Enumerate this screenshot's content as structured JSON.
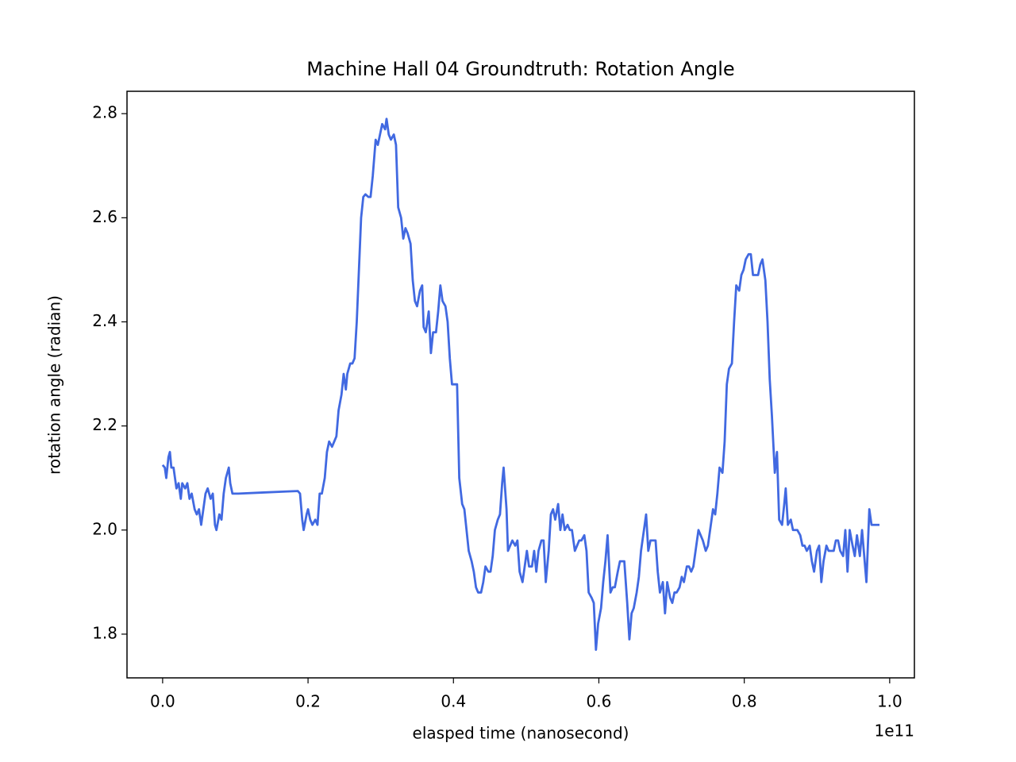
{
  "chart_data": {
    "type": "line",
    "title": "Machine Hall 04 Groundtruth: Rotation Angle",
    "x_label": "elasped time (nanosecond)",
    "y_label": "rotation angle (radian)",
    "x_offset_label": "1e11",
    "xlim": [
      -0.049,
      1.034
    ],
    "ylim": [
      1.716,
      2.843
    ],
    "xticks": [
      {
        "value": 0,
        "label": "0.0"
      },
      0.2,
      0.4,
      0.6,
      0.8,
      {
        "value": 1,
        "label": "1.0"
      }
    ],
    "yticks": [
      1.8,
      {
        "value": 2,
        "label": "2.0"
      },
      2.2,
      2.4,
      2.6,
      2.8
    ],
    "x": [
      0,
      0.003,
      0.005,
      0.008,
      0.01,
      0.012,
      0.015,
      0.019,
      0.022,
      0.025,
      0.027,
      0.031,
      0.034,
      0.037,
      0.04,
      0.044,
      0.047,
      0.05,
      0.053,
      0.056,
      0.059,
      0.062,
      0.066,
      0.069,
      0.072,
      0.074,
      0.078,
      0.081,
      0.084,
      0.087,
      0.091,
      0.093,
      0.096,
      0.104,
      0.136,
      0.169,
      0.186,
      0.189,
      0.192,
      0.194,
      0.198,
      0.2,
      0.203,
      0.206,
      0.21,
      0.213,
      0.216,
      0.219,
      0.223,
      0.226,
      0.229,
      0.233,
      0.236,
      0.239,
      0.242,
      0.246,
      0.249,
      0.252,
      0.254,
      0.258,
      0.261,
      0.264,
      0.267,
      0.27,
      0.273,
      0.276,
      0.279,
      0.283,
      0.286,
      0.289,
      0.293,
      0.296,
      0.299,
      0.302,
      0.306,
      0.308,
      0.311,
      0.314,
      0.318,
      0.321,
      0.324,
      0.328,
      0.331,
      0.334,
      0.337,
      0.341,
      0.344,
      0.347,
      0.35,
      0.354,
      0.357,
      0.359,
      0.362,
      0.366,
      0.369,
      0.372,
      0.376,
      0.379,
      0.382,
      0.385,
      0.389,
      0.392,
      0.395,
      0.398,
      0.402,
      0.405,
      0.408,
      0.412,
      0.415,
      0.418,
      0.421,
      0.425,
      0.428,
      0.431,
      0.434,
      0.438,
      0.441,
      0.444,
      0.448,
      0.451,
      0.454,
      0.457,
      0.461,
      0.464,
      0.467,
      0.469,
      0.473,
      0.475,
      0.478,
      0.481,
      0.485,
      0.488,
      0.491,
      0.495,
      0.498,
      0.501,
      0.504,
      0.508,
      0.511,
      0.514,
      0.517,
      0.521,
      0.524,
      0.527,
      0.531,
      0.534,
      0.537,
      0.54,
      0.544,
      0.547,
      0.55,
      0.553,
      0.557,
      0.56,
      0.563,
      0.567,
      0.57,
      0.573,
      0.576,
      0.58,
      0.583,
      0.586,
      0.59,
      0.593,
      0.596,
      0.599,
      0.603,
      0.606,
      0.609,
      0.612,
      0.616,
      0.619,
      0.622,
      0.626,
      0.629,
      0.632,
      0.635,
      0.639,
      0.642,
      0.645,
      0.648,
      0.652,
      0.655,
      0.658,
      0.662,
      0.665,
      0.668,
      0.671,
      0.675,
      0.678,
      0.681,
      0.684,
      0.688,
      0.691,
      0.694,
      0.698,
      0.701,
      0.704,
      0.707,
      0.711,
      0.714,
      0.717,
      0.721,
      0.724,
      0.727,
      0.73,
      0.734,
      0.737,
      0.74,
      0.743,
      0.747,
      0.75,
      0.753,
      0.757,
      0.76,
      0.763,
      0.766,
      0.77,
      0.773,
      0.776,
      0.779,
      0.783,
      0.786,
      0.789,
      0.793,
      0.796,
      0.799,
      0.802,
      0.806,
      0.809,
      0.812,
      0.816,
      0.819,
      0.822,
      0.825,
      0.829,
      0.832,
      0.835,
      0.838,
      0.842,
      0.845,
      0.848,
      0.852,
      0.855,
      0.857,
      0.86,
      0.864,
      0.867,
      0.87,
      0.873,
      0.877,
      0.88,
      0.883,
      0.886,
      0.89,
      0.893,
      0.896,
      0.9,
      0.903,
      0.906,
      0.909,
      0.913,
      0.916,
      0.919,
      0.923,
      0.926,
      0.929,
      0.932,
      0.936,
      0.939,
      0.942,
      0.945,
      0.949,
      0.952,
      0.955,
      0.959,
      0.962,
      0.965,
      0.968,
      0.972,
      0.975,
      0.978,
      0.986
    ],
    "series": [
      {
        "name": "rotation angle",
        "color": "#4169e1",
        "values": [
          2.125,
          2.12,
          2.1,
          2.14,
          2.15,
          2.12,
          2.12,
          2.08,
          2.09,
          2.06,
          2.09,
          2.08,
          2.09,
          2.06,
          2.07,
          2.04,
          2.03,
          2.04,
          2.01,
          2.04,
          2.07,
          2.08,
          2.06,
          2.07,
          2.01,
          2.0,
          2.03,
          2.02,
          2.07,
          2.1,
          2.12,
          2.09,
          2.07,
          2.07,
          2.072,
          2.074,
          2.075,
          2.07,
          2.02,
          2.0,
          2.03,
          2.04,
          2.02,
          2.01,
          2.02,
          2.01,
          2.07,
          2.07,
          2.1,
          2.15,
          2.17,
          2.16,
          2.17,
          2.18,
          2.23,
          2.26,
          2.3,
          2.27,
          2.3,
          2.32,
          2.32,
          2.33,
          2.4,
          2.5,
          2.6,
          2.64,
          2.645,
          2.64,
          2.64,
          2.68,
          2.75,
          2.74,
          2.76,
          2.78,
          2.77,
          2.79,
          2.76,
          2.75,
          2.76,
          2.74,
          2.62,
          2.6,
          2.56,
          2.58,
          2.57,
          2.55,
          2.48,
          2.44,
          2.43,
          2.46,
          2.47,
          2.39,
          2.38,
          2.42,
          2.34,
          2.38,
          2.38,
          2.42,
          2.47,
          2.44,
          2.43,
          2.4,
          2.33,
          2.28,
          2.28,
          2.28,
          2.1,
          2.05,
          2.04,
          2.0,
          1.96,
          1.94,
          1.92,
          1.89,
          1.88,
          1.88,
          1.9,
          1.93,
          1.92,
          1.92,
          1.95,
          2.0,
          2.02,
          2.03,
          2.09,
          2.12,
          2.04,
          1.96,
          1.97,
          1.98,
          1.97,
          1.98,
          1.92,
          1.9,
          1.93,
          1.96,
          1.93,
          1.93,
          1.96,
          1.92,
          1.96,
          1.98,
          1.98,
          1.9,
          1.96,
          2.03,
          2.04,
          2.02,
          2.05,
          2.0,
          2.03,
          2.0,
          2.01,
          2.0,
          2.0,
          1.96,
          1.97,
          1.98,
          1.98,
          1.99,
          1.96,
          1.88,
          1.87,
          1.86,
          1.77,
          1.82,
          1.85,
          1.9,
          1.94,
          1.99,
          1.88,
          1.89,
          1.89,
          1.92,
          1.94,
          1.94,
          1.94,
          1.86,
          1.79,
          1.84,
          1.85,
          1.88,
          1.91,
          1.96,
          2.0,
          2.03,
          1.96,
          1.98,
          1.98,
          1.98,
          1.92,
          1.88,
          1.9,
          1.84,
          1.9,
          1.87,
          1.86,
          1.88,
          1.88,
          1.89,
          1.91,
          1.9,
          1.93,
          1.93,
          1.92,
          1.93,
          1.97,
          2.0,
          1.99,
          1.98,
          1.96,
          1.97,
          2.0,
          2.04,
          2.03,
          2.07,
          2.12,
          2.11,
          2.17,
          2.28,
          2.31,
          2.32,
          2.4,
          2.47,
          2.46,
          2.49,
          2.5,
          2.52,
          2.53,
          2.53,
          2.49,
          2.49,
          2.49,
          2.51,
          2.52,
          2.48,
          2.4,
          2.29,
          2.22,
          2.11,
          2.15,
          2.02,
          2.01,
          2.05,
          2.08,
          2.01,
          2.02,
          2.0,
          2.0,
          2.0,
          1.99,
          1.97,
          1.97,
          1.96,
          1.97,
          1.94,
          1.92,
          1.96,
          1.97,
          1.9,
          1.94,
          1.97,
          1.96,
          1.96,
          1.96,
          1.98,
          1.98,
          1.96,
          1.95,
          2.0,
          1.92,
          2.0,
          1.97,
          1.95,
          1.99,
          1.95,
          2.0,
          1.95,
          1.9,
          2.04,
          2.01,
          2.01,
          2.01
        ]
      }
    ]
  }
}
